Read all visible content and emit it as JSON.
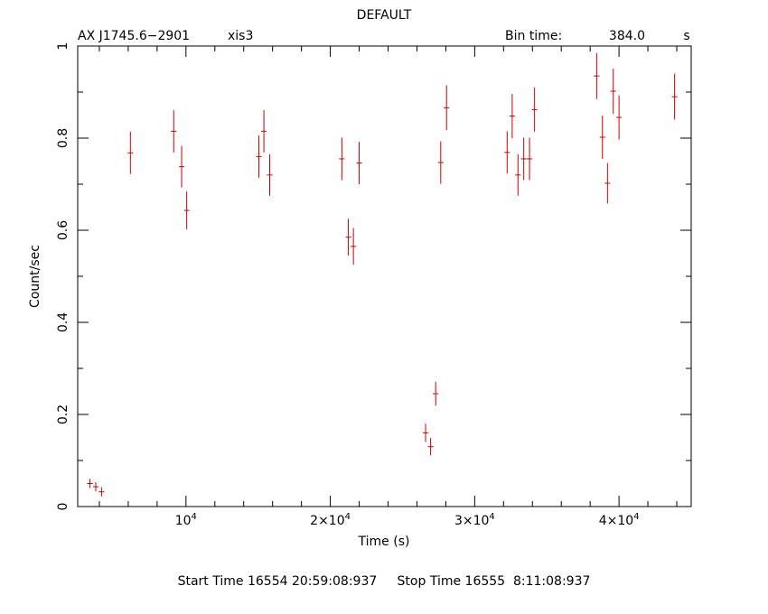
{
  "header": {
    "title": "DEFAULT",
    "source": "AX J1745.6−2901",
    "instrument": "xis3",
    "bin_label": "Bin time:",
    "bin_value": "384.0",
    "bin_unit": "s"
  },
  "footer": {
    "start_label": "Start Time",
    "start_value": "16554 20:59:08:937",
    "stop_label": "Stop Time",
    "stop_value": "16555  8:11:08:937"
  },
  "colors": {
    "data": "#cc0000",
    "axes": "#000000"
  },
  "chart_data": {
    "type": "scatter",
    "xlabel": "Time (s)",
    "ylabel": "Count/sec",
    "xlim": [
      2500,
      45000
    ],
    "ylim": [
      0,
      1
    ],
    "x_ticks": [
      {
        "value": 10000,
        "base": "10",
        "exp": "4"
      },
      {
        "value": 20000,
        "base": "2×10",
        "exp": "4"
      },
      {
        "value": 30000,
        "base": "3×10",
        "exp": "4"
      },
      {
        "value": 40000,
        "base": "4×10",
        "exp": "4"
      }
    ],
    "y_ticks": [
      {
        "value": 0,
        "label": "0"
      },
      {
        "value": 0.2,
        "label": "0.2"
      },
      {
        "value": 0.4,
        "label": "0.4"
      },
      {
        "value": 0.6,
        "label": "0.6"
      },
      {
        "value": 0.8,
        "label": "0.8"
      },
      {
        "value": 1,
        "label": "1"
      }
    ],
    "x_half_width": 192,
    "points": [
      {
        "x": 3350,
        "y": 0.05,
        "err": 0.01
      },
      {
        "x": 3750,
        "y": 0.043,
        "err": 0.01
      },
      {
        "x": 4150,
        "y": 0.032,
        "err": 0.01
      },
      {
        "x": 6150,
        "y": 0.768,
        "err": 0.046
      },
      {
        "x": 9150,
        "y": 0.815,
        "err": 0.046
      },
      {
        "x": 9700,
        "y": 0.738,
        "err": 0.045
      },
      {
        "x": 10050,
        "y": 0.643,
        "err": 0.041
      },
      {
        "x": 15050,
        "y": 0.76,
        "err": 0.046
      },
      {
        "x": 15400,
        "y": 0.815,
        "err": 0.046
      },
      {
        "x": 15800,
        "y": 0.72,
        "err": 0.045
      },
      {
        "x": 20800,
        "y": 0.755,
        "err": 0.046
      },
      {
        "x": 21250,
        "y": 0.585,
        "err": 0.04
      },
      {
        "x": 21600,
        "y": 0.565,
        "err": 0.04
      },
      {
        "x": 22000,
        "y": 0.746,
        "err": 0.046
      },
      {
        "x": 26600,
        "y": 0.16,
        "err": 0.02
      },
      {
        "x": 26950,
        "y": 0.13,
        "err": 0.019
      },
      {
        "x": 27300,
        "y": 0.245,
        "err": 0.026
      },
      {
        "x": 27650,
        "y": 0.747,
        "err": 0.046
      },
      {
        "x": 28050,
        "y": 0.866,
        "err": 0.049
      },
      {
        "x": 32250,
        "y": 0.769,
        "err": 0.046
      },
      {
        "x": 32600,
        "y": 0.848,
        "err": 0.048
      },
      {
        "x": 33000,
        "y": 0.72,
        "err": 0.045
      },
      {
        "x": 33400,
        "y": 0.755,
        "err": 0.046
      },
      {
        "x": 33800,
        "y": 0.755,
        "err": 0.046
      },
      {
        "x": 34150,
        "y": 0.862,
        "err": 0.048
      },
      {
        "x": 38450,
        "y": 0.935,
        "err": 0.05
      },
      {
        "x": 38850,
        "y": 0.802,
        "err": 0.047
      },
      {
        "x": 39200,
        "y": 0.702,
        "err": 0.044
      },
      {
        "x": 39600,
        "y": 0.902,
        "err": 0.049
      },
      {
        "x": 40000,
        "y": 0.845,
        "err": 0.048
      },
      {
        "x": 43850,
        "y": 0.89,
        "err": 0.05
      }
    ]
  }
}
